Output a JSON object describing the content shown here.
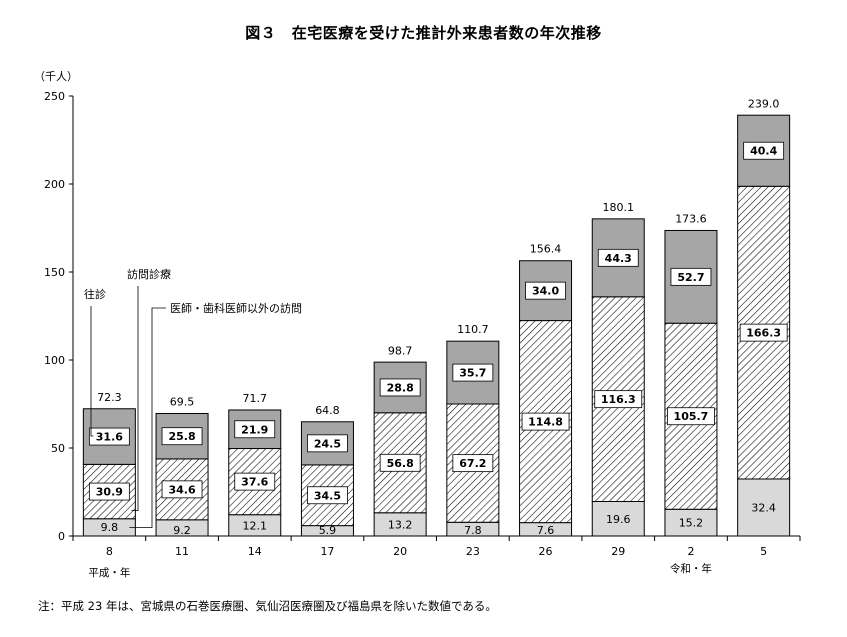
{
  "chart_data": {
    "type": "bar",
    "stacked": true,
    "title": "図３　在宅医療を受けた推計外来患者数の年次推移",
    "ylabel": "（千人）",
    "ylim": [
      0,
      250
    ],
    "yticks": [
      "0",
      "50",
      "100",
      "150",
      "200",
      "250"
    ],
    "categories": [
      "8",
      "11",
      "14",
      "17",
      "20",
      "23",
      "26",
      "29",
      "2",
      "5"
    ],
    "era_labels": [
      "平成・年",
      "令和・年"
    ],
    "series": [
      {
        "name": "医師・歯科医師以外の訪問",
        "color": "#d9d9d9",
        "pattern": "solid",
        "values": [
          9.8,
          9.2,
          12.1,
          5.9,
          13.2,
          7.8,
          7.6,
          19.6,
          15.2,
          32.4
        ],
        "labels": [
          "9.8",
          "9.2",
          "12.1",
          "5.9",
          "13.2",
          "7.8",
          "7.6",
          "19.6",
          "15.2",
          "32.4"
        ]
      },
      {
        "name": "訪問診療",
        "color": "#ffffff",
        "pattern": "hatch",
        "values": [
          30.9,
          34.6,
          37.6,
          34.5,
          56.8,
          67.2,
          114.8,
          116.3,
          105.7,
          166.3
        ],
        "labels": [
          "30.9",
          "34.6",
          "37.6",
          "34.5",
          "56.8",
          "67.2",
          "114.8",
          "116.3",
          "105.7",
          "166.3"
        ]
      },
      {
        "name": "往診",
        "color": "#a6a6a6",
        "pattern": "solid",
        "values": [
          31.6,
          25.8,
          21.9,
          24.5,
          28.8,
          35.7,
          34.0,
          44.3,
          52.7,
          40.4
        ],
        "labels": [
          "31.6",
          "25.8",
          "21.9",
          "24.5",
          "28.8",
          "35.7",
          "34.0",
          "44.3",
          "52.7",
          "40.4"
        ]
      }
    ],
    "totals": [
      72.3,
      69.5,
      71.7,
      64.8,
      98.7,
      110.7,
      156.4,
      180.1,
      173.6,
      239.0
    ],
    "total_labels": [
      "72.3",
      "69.5",
      "71.7",
      "64.8",
      "98.7",
      "110.7",
      "156.4",
      "180.1",
      "173.6",
      "239.0"
    ],
    "grid": false,
    "legend": "callouts-left"
  },
  "note": "注：平成 23 年は、宮城県の石巻医療圏、気仙沼医療圏及び福島県を除いた数値である。"
}
